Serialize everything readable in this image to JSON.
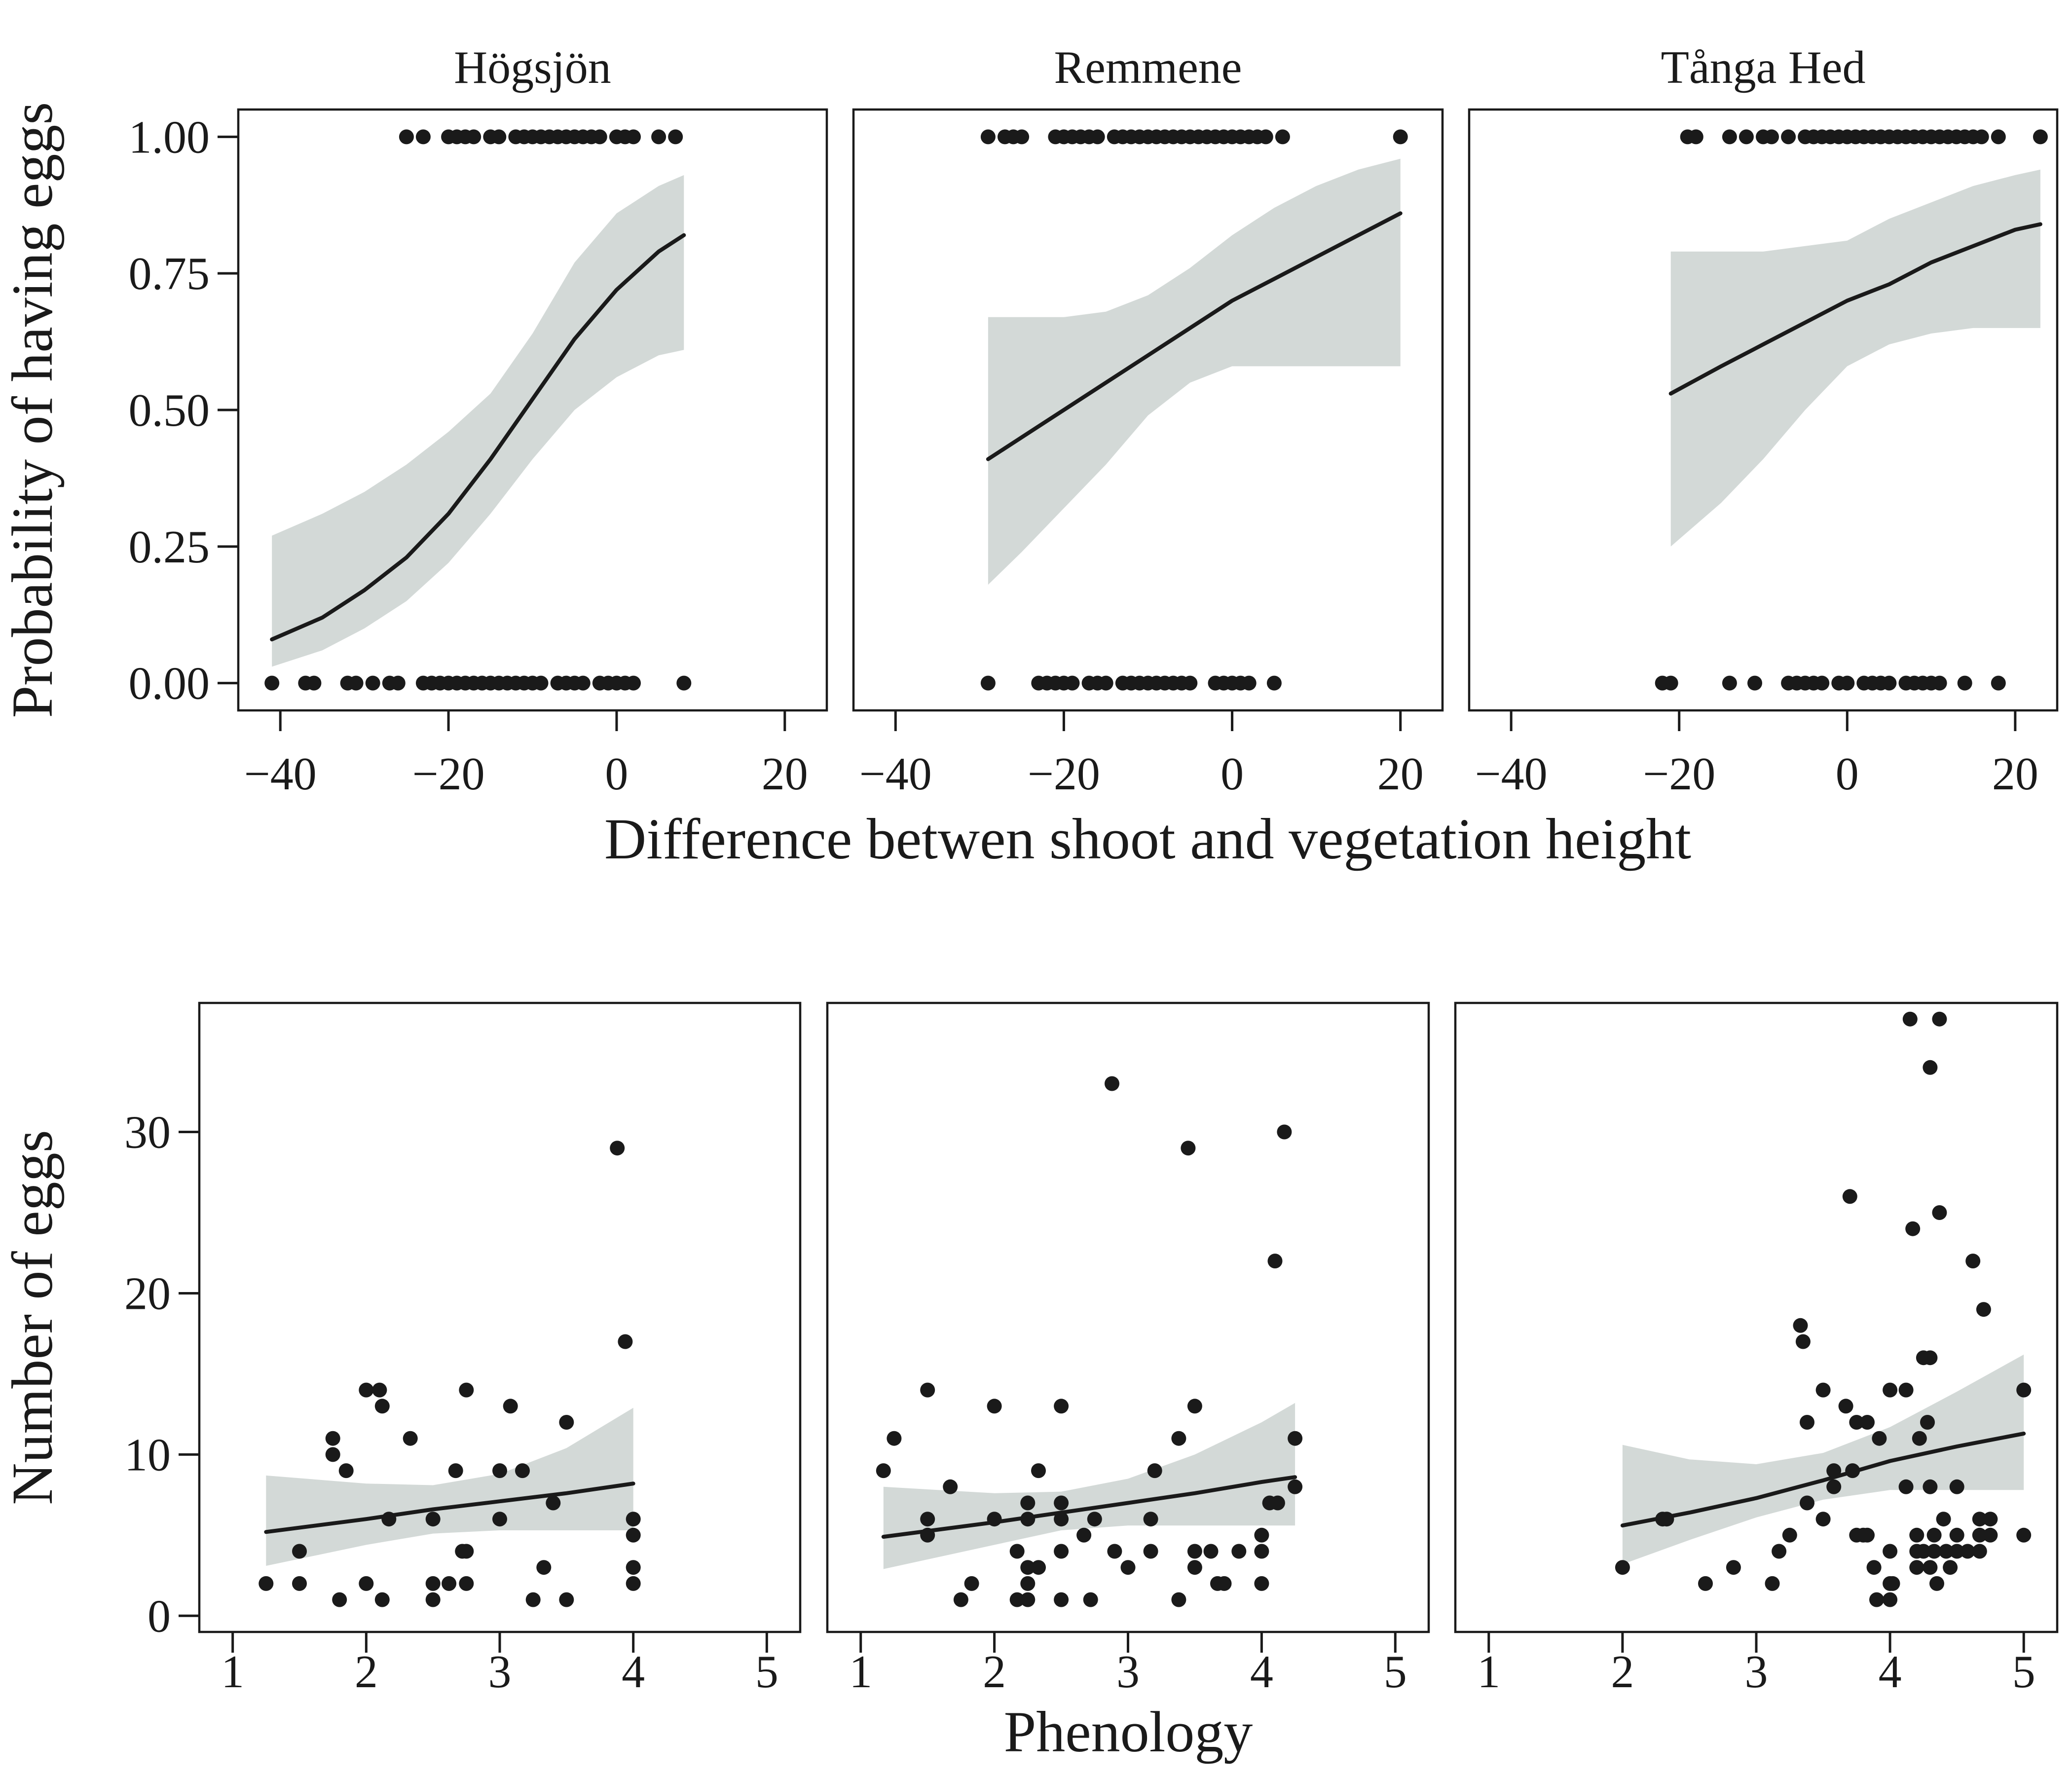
{
  "chart_data": [
    {
      "type": "scatter",
      "row": "top",
      "shared_ylabel": "Probability of having eggs",
      "shared_xlabel": "Difference betwen shoot and vegetation height",
      "xlim": [
        -45,
        25
      ],
      "ylim": [
        -0.05,
        1.05
      ],
      "xticks": [
        -40,
        -20,
        0,
        20
      ],
      "xtick_labels": [
        "−40",
        "−20",
        "0",
        "20"
      ],
      "yticks": [
        0,
        0.25,
        0.5,
        0.75,
        1
      ],
      "ytick_labels": [
        "0.00",
        "0.25",
        "0.50",
        "0.75",
        "1.00"
      ],
      "panels": [
        {
          "title": "Högsjön",
          "points_y1": [
            -25,
            -23,
            -20,
            -19,
            -18,
            -17,
            -15,
            -14,
            -12,
            -11,
            -10,
            -9,
            -8,
            -7,
            -6,
            -5,
            -4,
            -3,
            -2,
            0,
            1,
            2,
            5,
            7
          ],
          "points_y0": [
            -41,
            -37,
            -36,
            -32,
            -31,
            -29,
            -27,
            -26,
            -23,
            -22,
            -21,
            -20,
            -19,
            -18,
            -17,
            -16,
            -15,
            -14,
            -13,
            -12,
            -11,
            -10,
            -9,
            -7,
            -6,
            -5,
            -4,
            -2,
            -1,
            0,
            1,
            2,
            8
          ],
          "fit": {
            "x": [
              -41,
              -35,
              -30,
              -25,
              -20,
              -15,
              -10,
              -5,
              0,
              5,
              8
            ],
            "y": [
              0.08,
              0.12,
              0.17,
              0.23,
              0.31,
              0.41,
              0.52,
              0.63,
              0.72,
              0.79,
              0.82
            ],
            "lower": [
              0.03,
              0.06,
              0.1,
              0.15,
              0.22,
              0.31,
              0.41,
              0.5,
              0.56,
              0.6,
              0.61
            ],
            "upper": [
              0.27,
              0.31,
              0.35,
              0.4,
              0.46,
              0.53,
              0.64,
              0.77,
              0.86,
              0.91,
              0.93
            ]
          }
        },
        {
          "title": "Remmene",
          "points_y1": [
            -29,
            -27,
            -26,
            -25,
            -21,
            -20,
            -19,
            -18,
            -17,
            -16,
            -14,
            -13,
            -12,
            -11,
            -10,
            -9,
            -8,
            -7,
            -6,
            -5,
            -4,
            -3,
            -2,
            -1,
            0,
            1,
            2,
            3,
            4,
            6,
            20
          ],
          "points_y0": [
            -29,
            -23,
            -22,
            -21,
            -20,
            -19,
            -17,
            -16,
            -15,
            -13,
            -12,
            -11,
            -10,
            -9,
            -8,
            -7,
            -6,
            -5,
            -2,
            -1,
            0,
            1,
            2,
            5
          ],
          "fit": {
            "x": [
              -29,
              -25,
              -20,
              -15,
              -10,
              -5,
              0,
              5,
              10,
              15,
              20
            ],
            "y": [
              0.41,
              0.45,
              0.5,
              0.55,
              0.6,
              0.65,
              0.7,
              0.74,
              0.78,
              0.82,
              0.86
            ],
            "lower": [
              0.18,
              0.24,
              0.32,
              0.4,
              0.49,
              0.55,
              0.58,
              0.58,
              0.58,
              0.58,
              0.58
            ],
            "upper": [
              0.67,
              0.67,
              0.67,
              0.68,
              0.71,
              0.76,
              0.82,
              0.87,
              0.91,
              0.94,
              0.96
            ]
          }
        },
        {
          "title": "Tånga Hed",
          "points_y1": [
            -19,
            -18,
            -14,
            -12,
            -10,
            -9,
            -7,
            -5,
            -4,
            -3,
            -2,
            -1,
            0,
            1,
            2,
            3,
            4,
            5,
            6,
            7,
            8,
            9,
            10,
            11,
            12,
            13,
            14,
            15,
            16,
            18,
            23
          ],
          "points_y0": [
            -22,
            -21,
            -14,
            -11,
            -7,
            -6,
            -5,
            -4,
            -3,
            -1,
            0,
            2,
            3,
            4,
            5,
            7,
            8,
            9,
            10,
            11,
            14,
            18
          ],
          "fit": {
            "x": [
              -21,
              -15,
              -10,
              -5,
              0,
              5,
              10,
              15,
              20,
              23
            ],
            "y": [
              0.53,
              0.58,
              0.62,
              0.66,
              0.7,
              0.73,
              0.77,
              0.8,
              0.83,
              0.84
            ],
            "lower": [
              0.25,
              0.33,
              0.41,
              0.5,
              0.58,
              0.62,
              0.64,
              0.65,
              0.65,
              0.65
            ],
            "upper": [
              0.79,
              0.79,
              0.79,
              0.8,
              0.81,
              0.85,
              0.88,
              0.91,
              0.93,
              0.94
            ]
          }
        }
      ]
    },
    {
      "type": "scatter",
      "row": "bottom",
      "shared_ylabel": "Number of eggs",
      "shared_xlabel": "Phenology",
      "xlim": [
        0.75,
        5.25
      ],
      "ylim": [
        -1,
        38
      ],
      "xticks": [
        1,
        2,
        3,
        4,
        5
      ],
      "xtick_labels": [
        "1",
        "2",
        "3",
        "4",
        "5"
      ],
      "yticks": [
        0,
        10,
        20,
        30
      ],
      "ytick_labels": [
        "0",
        "10",
        "20",
        "30"
      ],
      "panels": [
        {
          "title": "",
          "points": [
            [
              1.25,
              2
            ],
            [
              1.5,
              4
            ],
            [
              1.5,
              2
            ],
            [
              1.75,
              11
            ],
            [
              1.75,
              10
            ],
            [
              1.8,
              1
            ],
            [
              1.85,
              9
            ],
            [
              2.0,
              14
            ],
            [
              2.0,
              2
            ],
            [
              2.1,
              14
            ],
            [
              2.12,
              1
            ],
            [
              2.12,
              13
            ],
            [
              2.17,
              6
            ],
            [
              2.33,
              11
            ],
            [
              2.5,
              6
            ],
            [
              2.5,
              1
            ],
            [
              2.5,
              2
            ],
            [
              2.62,
              2
            ],
            [
              2.67,
              9
            ],
            [
              2.72,
              4
            ],
            [
              2.75,
              14
            ],
            [
              2.75,
              2
            ],
            [
              2.75,
              4
            ],
            [
              3.0,
              9
            ],
            [
              3.0,
              6
            ],
            [
              3.08,
              13
            ],
            [
              3.17,
              9
            ],
            [
              3.25,
              1
            ],
            [
              3.33,
              3
            ],
            [
              3.4,
              7
            ],
            [
              3.5,
              12
            ],
            [
              3.5,
              1
            ],
            [
              3.88,
              29
            ],
            [
              3.94,
              17
            ],
            [
              4.0,
              6
            ],
            [
              4.0,
              5
            ],
            [
              4.0,
              3
            ],
            [
              4.0,
              2
            ]
          ],
          "fit": {
            "x": [
              1.25,
              2,
              2.5,
              3,
              3.5,
              4
            ],
            "y": [
              5.2,
              6.0,
              6.6,
              7.1,
              7.6,
              8.2
            ],
            "lower": [
              3.1,
              4.4,
              5.1,
              5.3,
              5.3,
              5.3
            ],
            "upper": [
              8.7,
              8.2,
              8.1,
              8.8,
              10.4,
              12.9
            ]
          }
        },
        {
          "title": "",
          "points": [
            [
              1.17,
              9
            ],
            [
              1.25,
              11
            ],
            [
              1.5,
              14
            ],
            [
              1.5,
              6
            ],
            [
              1.5,
              5
            ],
            [
              1.67,
              8
            ],
            [
              1.75,
              1
            ],
            [
              1.83,
              2
            ],
            [
              2.0,
              13
            ],
            [
              2.0,
              6
            ],
            [
              2.17,
              4
            ],
            [
              2.17,
              1
            ],
            [
              2.25,
              7
            ],
            [
              2.25,
              6
            ],
            [
              2.25,
              3
            ],
            [
              2.25,
              2
            ],
            [
              2.25,
              1
            ],
            [
              2.33,
              9
            ],
            [
              2.33,
              3
            ],
            [
              2.5,
              13
            ],
            [
              2.5,
              7
            ],
            [
              2.5,
              6
            ],
            [
              2.5,
              4
            ],
            [
              2.5,
              1
            ],
            [
              2.67,
              5
            ],
            [
              2.72,
              1
            ],
            [
              2.75,
              6
            ],
            [
              2.88,
              33
            ],
            [
              2.9,
              4
            ],
            [
              3.0,
              3
            ],
            [
              3.17,
              6
            ],
            [
              3.17,
              4
            ],
            [
              3.2,
              9
            ],
            [
              3.38,
              11
            ],
            [
              3.38,
              1
            ],
            [
              3.45,
              29
            ],
            [
              3.5,
              13
            ],
            [
              3.5,
              4
            ],
            [
              3.5,
              3
            ],
            [
              3.62,
              4
            ],
            [
              3.67,
              2
            ],
            [
              3.72,
              2
            ],
            [
              3.83,
              4
            ],
            [
              4.0,
              5
            ],
            [
              4.0,
              4
            ],
            [
              4.0,
              2
            ],
            [
              4.06,
              7
            ],
            [
              4.1,
              22
            ],
            [
              4.12,
              7
            ],
            [
              4.17,
              30
            ],
            [
              4.25,
              11
            ],
            [
              4.25,
              8
            ]
          ],
          "fit": {
            "x": [
              1.17,
              2,
              2.5,
              3,
              3.5,
              4,
              4.25
            ],
            "y": [
              4.9,
              5.8,
              6.4,
              7.0,
              7.6,
              8.3,
              8.6
            ],
            "lower": [
              2.9,
              4.4,
              5.3,
              5.6,
              5.6,
              5.6,
              5.6
            ],
            "upper": [
              8.0,
              7.6,
              7.7,
              8.5,
              10.0,
              12.0,
              13.2
            ]
          }
        },
        {
          "title": "",
          "points": [
            [
              2.0,
              3
            ],
            [
              2.3,
              6
            ],
            [
              2.33,
              6
            ],
            [
              2.62,
              2
            ],
            [
              2.83,
              3
            ],
            [
              3.12,
              2
            ],
            [
              3.17,
              4
            ],
            [
              3.25,
              5
            ],
            [
              3.33,
              18
            ],
            [
              3.35,
              17
            ],
            [
              3.38,
              12
            ],
            [
              3.38,
              7
            ],
            [
              3.5,
              14
            ],
            [
              3.5,
              6
            ],
            [
              3.58,
              8
            ],
            [
              3.58,
              9
            ],
            [
              3.67,
              13
            ],
            [
              3.7,
              26
            ],
            [
              3.72,
              9
            ],
            [
              3.75,
              12
            ],
            [
              3.75,
              5
            ],
            [
              3.8,
              5
            ],
            [
              3.83,
              12
            ],
            [
              3.83,
              5
            ],
            [
              3.88,
              3
            ],
            [
              3.9,
              1
            ],
            [
              3.92,
              11
            ],
            [
              4.0,
              14
            ],
            [
              4.0,
              4
            ],
            [
              4.0,
              2
            ],
            [
              4.0,
              1
            ],
            [
              4.02,
              2
            ],
            [
              4.12,
              14
            ],
            [
              4.12,
              8
            ],
            [
              4.15,
              37
            ],
            [
              4.17,
              24
            ],
            [
              4.2,
              5
            ],
            [
              4.2,
              4
            ],
            [
              4.2,
              3
            ],
            [
              4.22,
              11
            ],
            [
              4.25,
              16
            ],
            [
              4.25,
              4
            ],
            [
              4.28,
              12
            ],
            [
              4.3,
              34
            ],
            [
              4.3,
              16
            ],
            [
              4.3,
              8
            ],
            [
              4.3,
              3
            ],
            [
              4.33,
              5
            ],
            [
              4.33,
              4
            ],
            [
              4.35,
              2
            ],
            [
              4.37,
              37
            ],
            [
              4.37,
              25
            ],
            [
              4.4,
              6
            ],
            [
              4.42,
              4
            ],
            [
              4.45,
              3
            ],
            [
              4.5,
              8
            ],
            [
              4.5,
              5
            ],
            [
              4.5,
              4
            ],
            [
              4.58,
              4
            ],
            [
              4.62,
              22
            ],
            [
              4.67,
              6
            ],
            [
              4.67,
              5
            ],
            [
              4.67,
              4
            ],
            [
              4.7,
              19
            ],
            [
              4.75,
              6
            ],
            [
              4.75,
              5
            ],
            [
              5.0,
              14
            ],
            [
              5.0,
              5
            ]
          ],
          "fit": {
            "x": [
              2,
              2.5,
              3,
              3.5,
              4,
              4.5,
              5
            ],
            "y": [
              5.6,
              6.4,
              7.3,
              8.4,
              9.6,
              10.5,
              11.3
            ],
            "lower": [
              3.2,
              4.7,
              6.1,
              7.2,
              7.8,
              7.8,
              7.8
            ],
            "upper": [
              10.6,
              9.7,
              9.4,
              10.1,
              11.7,
              13.9,
              16.2
            ]
          }
        }
      ]
    }
  ]
}
